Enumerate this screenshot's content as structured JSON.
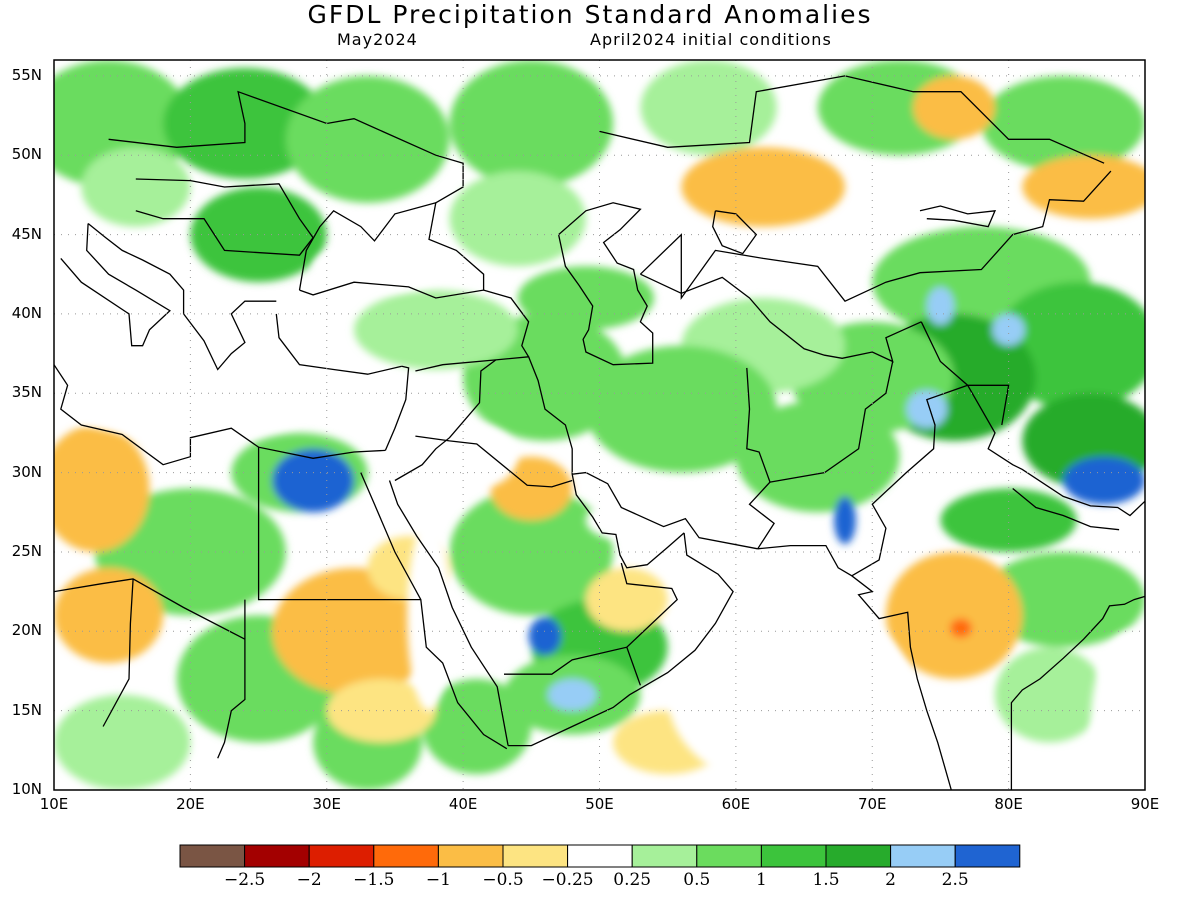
{
  "header": {
    "title": "GFDL Precipitation Standard Anomalies",
    "left_subtitle": "May2024",
    "right_subtitle": "April2024 initial conditions"
  },
  "map": {
    "lon_range": [
      10,
      90
    ],
    "lat_range": [
      10,
      56
    ],
    "lat_ticks": [
      "55N",
      "50N",
      "45N",
      "40N",
      "35N",
      "30N",
      "25N",
      "20N",
      "15N",
      "10N"
    ],
    "lon_ticks": [
      "10E",
      "20E",
      "30E",
      "40E",
      "50E",
      "60E",
      "70E",
      "80E",
      "90E"
    ],
    "gridlines": "dotted",
    "colors": {
      "green_light": "#a6f09a",
      "green_mid": "#6bdc5e",
      "green": "#3cc43c",
      "green_dark": "#27ab2c",
      "blue_light": "#97cdf6",
      "blue": "#1f64d2",
      "yellow": "#fde482",
      "orange_light": "#fbbd45",
      "orange": "#ff6a0a",
      "coast": "#000000"
    }
  },
  "colorbar": {
    "colors": [
      "#7a5544",
      "#a30000",
      "#dd1e00",
      "#ff6a0a",
      "#fbbd45",
      "#fde482",
      "#ffffff",
      "#a6f09a",
      "#6bdc5e",
      "#3cc43c",
      "#27ab2c",
      "#97cdf6",
      "#1f64d2"
    ],
    "labels": [
      "−2.5",
      "−2",
      "−1.5",
      "−1",
      "−0.5",
      "−0.25",
      "0.25",
      "0.5",
      "1",
      "1.5",
      "2",
      "2.5"
    ]
  }
}
